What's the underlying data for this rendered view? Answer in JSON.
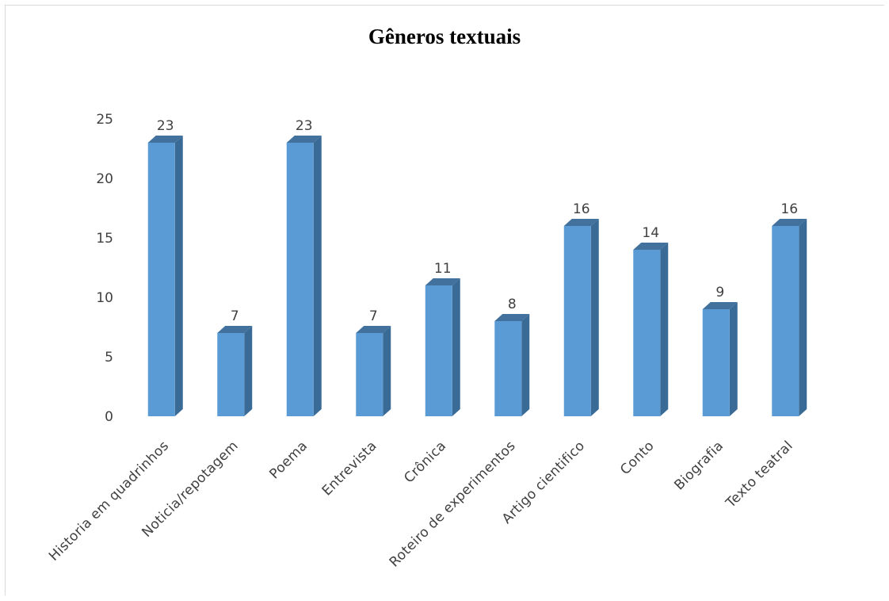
{
  "chart_data": {
    "type": "bar",
    "title": "Gêneros textuais",
    "xlabel": "",
    "ylabel": "",
    "ylim": [
      0,
      25
    ],
    "yticks": [
      0,
      5,
      10,
      15,
      20,
      25
    ],
    "grid": false,
    "legend": "none",
    "style": "3d-columns",
    "colors": {
      "bar_front": "#5b9bd5",
      "bar_side": "#3a6a96",
      "bar_top": "#41719c",
      "text": "#404040"
    },
    "categories": [
      "Historia em quadrinhos",
      "Noticia/repotagem",
      "Poema",
      "Entrevista",
      "Crônica",
      "Roteiro de experimentos",
      "Artigo cientifico",
      "Conto",
      "Biografia",
      "Texto teatral"
    ],
    "values": [
      23,
      7,
      23,
      7,
      11,
      8,
      16,
      14,
      9,
      16
    ],
    "data_labels": [
      "23",
      "7",
      "23",
      "7",
      "11",
      "8",
      "16",
      "14",
      "9",
      "16"
    ]
  }
}
